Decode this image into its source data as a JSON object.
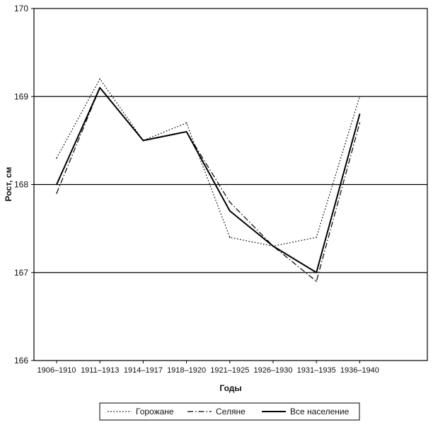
{
  "chart_data": {
    "type": "line",
    "categories": [
      "1906–1910",
      "1911–1913",
      "1914–1917",
      "1918–1920",
      "1921–1925",
      "1926–1930",
      "1931–1935",
      "1936–1940"
    ],
    "yticks": [
      "166",
      "167",
      "168",
      "169",
      "170"
    ],
    "ylim": [
      166,
      170
    ],
    "ylabel": "Рост, см",
    "xlabel": "Годы",
    "grid": "horizontal",
    "legend_position": "bottom",
    "series": [
      {
        "name": "Горожане",
        "style": "dotted",
        "values": [
          168.3,
          169.2,
          168.5,
          168.7,
          167.4,
          167.3,
          167.4,
          169.0
        ]
      },
      {
        "name": "Селяне",
        "style": "dashdot",
        "values": [
          167.9,
          169.1,
          168.5,
          168.6,
          167.8,
          167.3,
          166.9,
          168.7
        ]
      },
      {
        "name": "Все население",
        "style": "solid",
        "values": [
          168.0,
          169.1,
          168.5,
          168.6,
          167.7,
          167.3,
          167.0,
          168.8
        ]
      }
    ],
    "colors": {
      "line": "#000000",
      "grid": "#000000",
      "background": "#ffffff"
    }
  }
}
